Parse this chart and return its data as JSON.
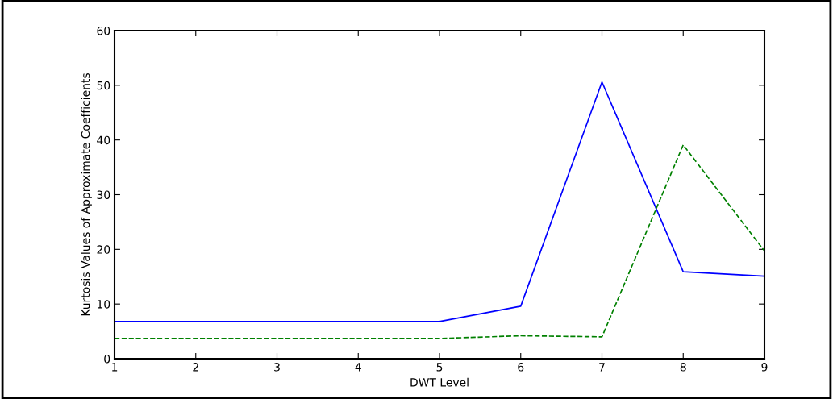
{
  "chart_data": {
    "type": "line",
    "xlabel": "DWT Level",
    "ylabel": "Kurtosis Values of Approximate Coefficients",
    "x": [
      1,
      2,
      3,
      4,
      5,
      6,
      7,
      8,
      9
    ],
    "series": [
      {
        "color": "#0000ff",
        "line_style": "solid",
        "values": [
          6.8,
          6.8,
          6.8,
          6.8,
          6.8,
          9.6,
          50.6,
          15.9,
          15.1
        ]
      },
      {
        "color": "#008000",
        "line_style": "dashed",
        "values": [
          3.7,
          3.7,
          3.7,
          3.7,
          3.7,
          4.2,
          4.0,
          39.1,
          19.7
        ]
      }
    ],
    "xlim": [
      1,
      9
    ],
    "xticks": [
      1,
      2,
      3,
      4,
      5,
      6,
      7,
      8,
      9
    ],
    "ylim": [
      0,
      60
    ],
    "yticks": [
      0,
      10,
      20,
      30,
      40,
      50,
      60
    ],
    "grid": false,
    "legend": false,
    "marker": "none"
  }
}
